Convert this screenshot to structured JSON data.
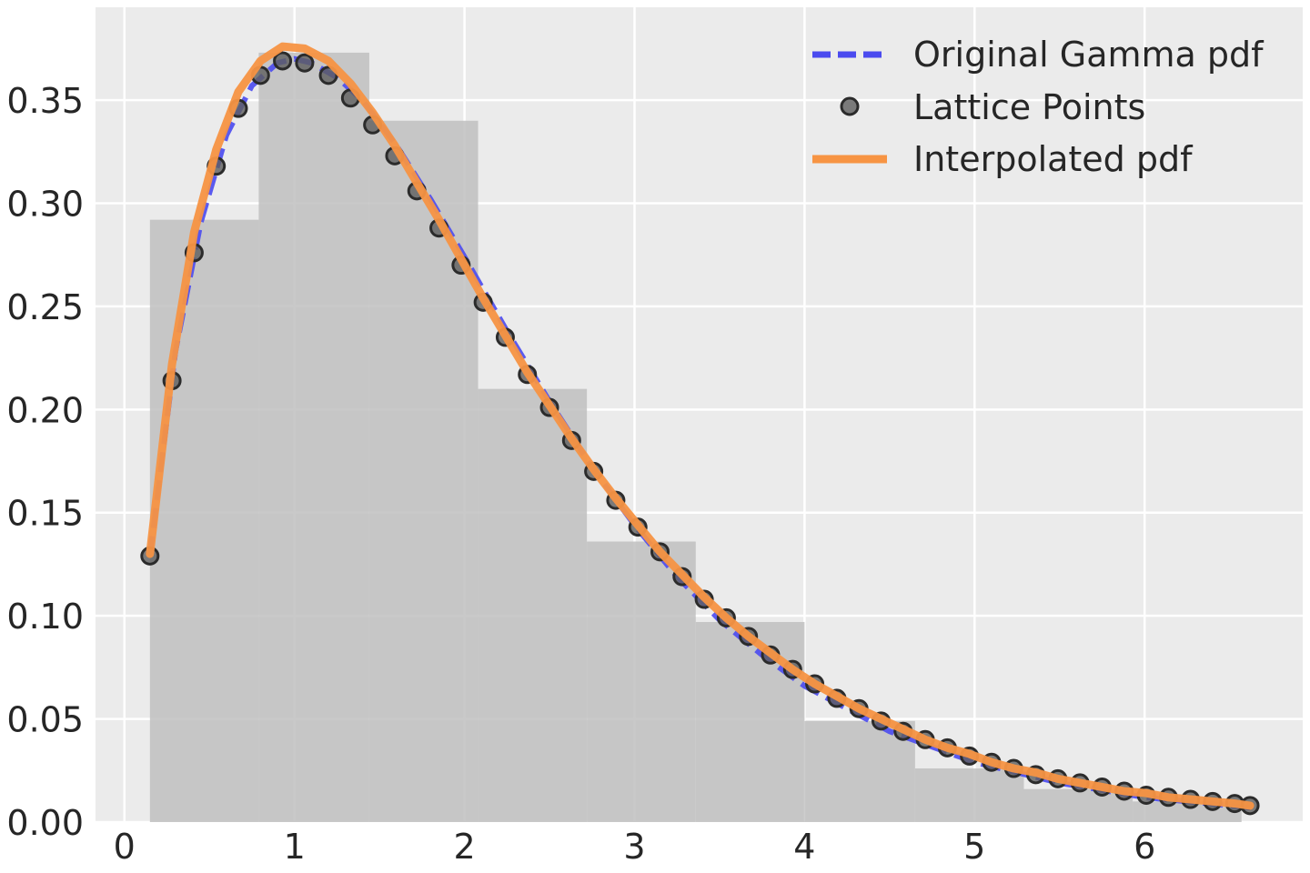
{
  "chart_data": {
    "type": "line",
    "title": "",
    "xlabel": "",
    "ylabel": "",
    "xlim": [
      -0.17,
      6.93
    ],
    "ylim": [
      0,
      0.395
    ],
    "grid": true,
    "legend_position": "top-right",
    "x_ticks": [
      0,
      1,
      2,
      3,
      4,
      5,
      6
    ],
    "x_tick_labels": [
      "0",
      "1",
      "2",
      "3",
      "4",
      "5",
      "6"
    ],
    "y_ticks": [
      0,
      0.05,
      0.1,
      0.15,
      0.2,
      0.25,
      0.3,
      0.35
    ],
    "y_tick_labels": [
      "0.00",
      "0.05",
      "0.10",
      "0.15",
      "0.20",
      "0.25",
      "0.30",
      "0.35"
    ],
    "colors": {
      "background": "#ebebeb",
      "grid": "#ffffff",
      "histogram": "#c0c0c0",
      "gamma_pdf": "#4a4aef",
      "lattice_points": "#5e5e5e",
      "interpolated_pdf": "#f79443"
    },
    "histogram": {
      "bin_edges": [
        0.15,
        0.79,
        1.44,
        2.08,
        2.72,
        3.36,
        4.0,
        4.65,
        5.29,
        5.93,
        6.57
      ],
      "heights": [
        0.292,
        0.373,
        0.34,
        0.21,
        0.136,
        0.097,
        0.049,
        0.026,
        0.016,
        0.01
      ]
    },
    "series": [
      {
        "name": "Original Gamma pdf",
        "style": "dashed",
        "x": [
          0.15,
          0.3,
          0.45,
          0.6,
          0.75,
          0.9,
          1.0,
          1.1,
          1.25,
          1.4,
          1.6,
          1.8,
          2.0,
          2.25,
          2.5,
          2.75,
          3.0,
          3.25,
          3.5,
          3.75,
          4.0,
          4.5,
          5.0,
          5.5,
          6.0,
          6.5,
          6.62
        ],
        "values": [
          0.129,
          0.228,
          0.291,
          0.333,
          0.357,
          0.368,
          0.37,
          0.368,
          0.361,
          0.35,
          0.328,
          0.302,
          0.274,
          0.238,
          0.204,
          0.172,
          0.144,
          0.119,
          0.098,
          0.081,
          0.066,
          0.044,
          0.029,
          0.019,
          0.012,
          0.008,
          0.007
        ]
      },
      {
        "name": "Lattice Points",
        "style": "markers",
        "x": [
          0.15,
          0.28,
          0.41,
          0.54,
          0.67,
          0.8,
          0.93,
          1.06,
          1.2,
          1.33,
          1.46,
          1.59,
          1.72,
          1.85,
          1.98,
          2.11,
          2.24,
          2.37,
          2.5,
          2.63,
          2.76,
          2.89,
          3.02,
          3.15,
          3.28,
          3.41,
          3.54,
          3.67,
          3.8,
          3.93,
          4.06,
          4.19,
          4.32,
          4.45,
          4.58,
          4.71,
          4.84,
          4.97,
          5.1,
          5.23,
          5.36,
          5.49,
          5.62,
          5.75,
          5.88,
          6.01,
          6.14,
          6.27,
          6.4,
          6.53,
          6.62
        ],
        "values": [
          0.129,
          0.214,
          0.276,
          0.318,
          0.346,
          0.362,
          0.369,
          0.368,
          0.362,
          0.351,
          0.338,
          0.323,
          0.306,
          0.288,
          0.27,
          0.252,
          0.235,
          0.217,
          0.201,
          0.185,
          0.17,
          0.156,
          0.143,
          0.131,
          0.119,
          0.108,
          0.099,
          0.09,
          0.081,
          0.074,
          0.067,
          0.06,
          0.055,
          0.049,
          0.044,
          0.04,
          0.036,
          0.032,
          0.029,
          0.026,
          0.023,
          0.021,
          0.019,
          0.017,
          0.015,
          0.013,
          0.012,
          0.011,
          0.01,
          0.009,
          0.008
        ]
      },
      {
        "name": "Interpolated pdf",
        "style": "solid",
        "x": [
          0.15,
          0.28,
          0.41,
          0.54,
          0.67,
          0.8,
          0.93,
          1.06,
          1.2,
          1.33,
          1.46,
          1.59,
          1.72,
          1.85,
          1.98,
          2.11,
          2.24,
          2.37,
          2.5,
          2.63,
          2.76,
          2.89,
          3.02,
          3.15,
          3.28,
          3.41,
          3.54,
          3.67,
          3.8,
          3.93,
          4.06,
          4.19,
          4.32,
          4.45,
          4.58,
          4.71,
          4.84,
          4.97,
          5.1,
          5.23,
          5.36,
          5.49,
          5.62,
          5.75,
          5.88,
          6.01,
          6.14,
          6.27,
          6.4,
          6.53,
          6.62
        ],
        "values": [
          0.13,
          0.222,
          0.286,
          0.326,
          0.354,
          0.369,
          0.376,
          0.375,
          0.369,
          0.358,
          0.344,
          0.328,
          0.31,
          0.292,
          0.273,
          0.254,
          0.236,
          0.218,
          0.202,
          0.186,
          0.171,
          0.157,
          0.144,
          0.131,
          0.12,
          0.109,
          0.099,
          0.09,
          0.082,
          0.074,
          0.067,
          0.061,
          0.055,
          0.05,
          0.045,
          0.04,
          0.036,
          0.033,
          0.029,
          0.026,
          0.024,
          0.021,
          0.019,
          0.017,
          0.015,
          0.014,
          0.012,
          0.011,
          0.01,
          0.009,
          0.008
        ]
      }
    ]
  }
}
